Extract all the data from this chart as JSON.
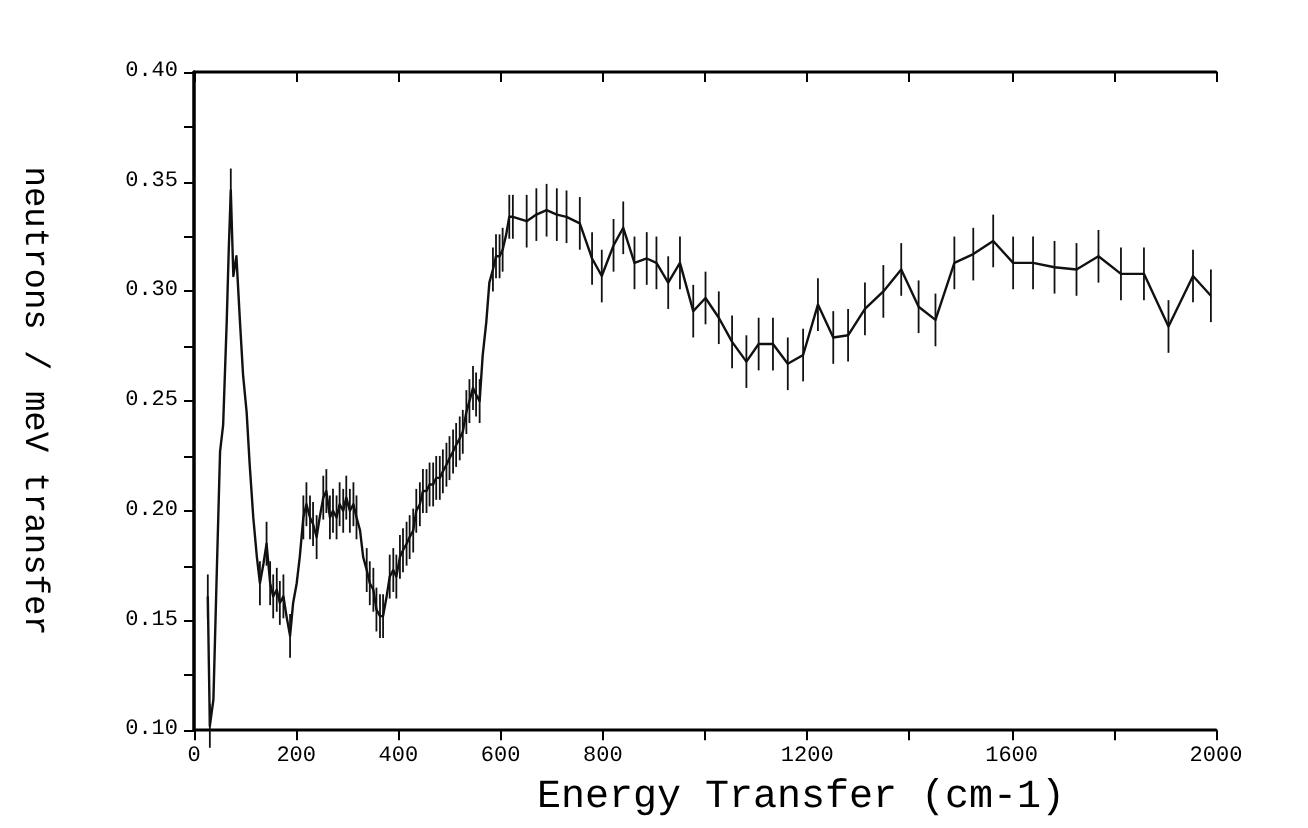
{
  "chart_data": {
    "type": "line",
    "xlabel": "Energy Transfer (cm-1)",
    "ylabel": "neutrons / meV transfer",
    "xlim": [
      0,
      2000
    ],
    "xticks": [
      0,
      200,
      400,
      600,
      800,
      {
        "value": 1000,
        "label": null
      },
      1200,
      {
        "value": 1400,
        "label": null
      },
      1600,
      {
        "value": 1800,
        "label": null
      },
      2000
    ],
    "ylim": [
      0.1,
      0.4
    ],
    "yticks": [
      {
        "value": 0.1,
        "label": "0.10"
      },
      {
        "value": 0.125,
        "label": null
      },
      {
        "value": 0.15,
        "label": "0.15"
      },
      {
        "value": 0.175,
        "label": null
      },
      {
        "value": 0.2,
        "label": "0.20"
      },
      {
        "value": 0.225,
        "label": null
      },
      {
        "value": 0.25,
        "label": "0.25"
      },
      {
        "value": 0.275,
        "label": null
      },
      {
        "value": 0.3,
        "label": "0.30"
      },
      {
        "value": 0.325,
        "label": null
      },
      {
        "value": 0.35,
        "label": "0.35"
      },
      {
        "value": 0.375,
        "label": null
      },
      {
        "value": 0.4,
        "label": "0.40"
      }
    ],
    "grid": false,
    "marker": "none",
    "line_style": "solid",
    "series": [
      {
        "color": "#111111",
        "x": [
          27,
          31,
          38,
          44,
          51,
          57,
          64,
          68,
          72,
          77,
          83,
          90,
          96,
          103,
          109,
          116,
          123,
          129,
          136,
          142,
          149,
          155,
          162,
          168,
          175,
          181,
          188,
          194,
          201,
          207,
          214,
          220,
          227,
          233,
          240,
          246,
          253,
          259,
          266,
          272,
          279,
          285,
          292,
          298,
          305,
          312,
          318,
          325,
          331,
          338,
          344,
          351,
          357,
          364,
          370,
          377,
          383,
          390,
          396,
          403,
          409,
          416,
          422,
          429,
          435,
          442,
          448,
          455,
          461,
          468,
          474,
          481,
          487,
          494,
          500,
          507,
          513,
          520,
          526,
          533,
          539,
          546,
          552,
          559,
          565,
          572,
          578,
          585,
          591,
          598,
          604,
          611,
          617,
          624,
          651,
          670,
          690,
          710,
          729,
          755,
          779,
          798,
          821,
          840,
          862,
          886,
          905,
          928,
          951,
          977,
          1001,
          1027,
          1053,
          1081,
          1105,
          1133,
          1162,
          1192,
          1221,
          1251,
          1280,
          1313,
          1349,
          1384,
          1418,
          1451,
          1488,
          1525,
          1564,
          1603,
          1642,
          1684,
          1727,
          1770,
          1814,
          1859,
          1907,
          1955,
          1990
        ],
        "values": [
          0.161,
          0.102,
          0.114,
          0.167,
          0.227,
          0.239,
          0.286,
          0.319,
          0.346,
          0.307,
          0.316,
          0.286,
          0.262,
          0.245,
          0.221,
          0.197,
          0.179,
          0.167,
          0.176,
          0.185,
          0.167,
          0.161,
          0.164,
          0.158,
          0.161,
          0.152,
          0.143,
          0.158,
          0.167,
          0.179,
          0.197,
          0.203,
          0.197,
          0.194,
          0.188,
          0.197,
          0.206,
          0.209,
          0.197,
          0.2,
          0.197,
          0.203,
          0.2,
          0.206,
          0.2,
          0.203,
          0.197,
          0.191,
          0.179,
          0.173,
          0.167,
          0.164,
          0.155,
          0.152,
          0.152,
          0.161,
          0.17,
          0.173,
          0.17,
          0.179,
          0.182,
          0.185,
          0.188,
          0.191,
          0.2,
          0.203,
          0.209,
          0.209,
          0.212,
          0.212,
          0.215,
          0.215,
          0.218,
          0.221,
          0.224,
          0.227,
          0.23,
          0.233,
          0.236,
          0.245,
          0.25,
          0.256,
          0.253,
          0.25,
          0.271,
          0.286,
          0.304,
          0.31,
          0.316,
          0.316,
          0.319,
          0.326,
          0.334,
          0.334,
          0.332,
          0.335,
          0.337,
          0.335,
          0.334,
          0.331,
          0.315,
          0.307,
          0.321,
          0.329,
          0.313,
          0.315,
          0.313,
          0.304,
          0.313,
          0.291,
          0.297,
          0.288,
          0.277,
          0.268,
          0.276,
          0.276,
          0.267,
          0.271,
          0.294,
          0.279,
          0.28,
          0.292,
          0.3,
          0.31,
          0.293,
          0.287,
          0.313,
          0.317,
          0.323,
          0.313,
          0.313,
          0.311,
          0.31,
          0.316,
          0.308,
          0.308,
          0.284,
          0.307,
          0.298
        ],
        "errors": [
          0.01,
          0.01,
          null,
          null,
          null,
          null,
          null,
          null,
          0.01,
          null,
          null,
          null,
          null,
          null,
          null,
          null,
          null,
          0.01,
          null,
          0.01,
          0.01,
          0.01,
          0.01,
          0.01,
          0.01,
          null,
          0.01,
          null,
          null,
          null,
          0.01,
          0.01,
          0.01,
          0.01,
          0.01,
          null,
          0.01,
          0.01,
          0.01,
          0.01,
          0.01,
          0.01,
          0.01,
          0.01,
          0.01,
          0.01,
          0.01,
          null,
          null,
          0.01,
          0.01,
          0.01,
          0.01,
          0.01,
          0.01,
          null,
          0.01,
          0.01,
          0.01,
          0.01,
          0.01,
          0.01,
          0.01,
          0.01,
          0.01,
          0.01,
          0.01,
          0.01,
          0.01,
          0.01,
          0.01,
          0.01,
          0.01,
          0.01,
          0.01,
          0.01,
          0.01,
          0.01,
          0.01,
          0.01,
          0.01,
          0.01,
          0.01,
          0.01,
          null,
          null,
          null,
          0.01,
          0.01,
          0.01,
          0.01,
          null,
          0.01,
          0.01,
          0.012,
          0.012,
          0.012,
          0.012,
          0.012,
          0.012,
          0.012,
          0.012,
          0.012,
          0.012,
          0.012,
          0.012,
          0.012,
          0.012,
          0.012,
          0.012,
          0.012,
          0.012,
          0.012,
          0.012,
          0.012,
          0.012,
          0.012,
          0.012,
          0.012,
          0.012,
          0.012,
          0.012,
          0.012,
          0.012,
          0.012,
          0.012,
          0.012,
          0.012,
          0.012,
          0.012,
          0.012,
          0.012,
          0.012,
          0.012,
          0.012,
          0.012,
          0.012,
          0.012,
          0.012
        ]
      }
    ]
  }
}
